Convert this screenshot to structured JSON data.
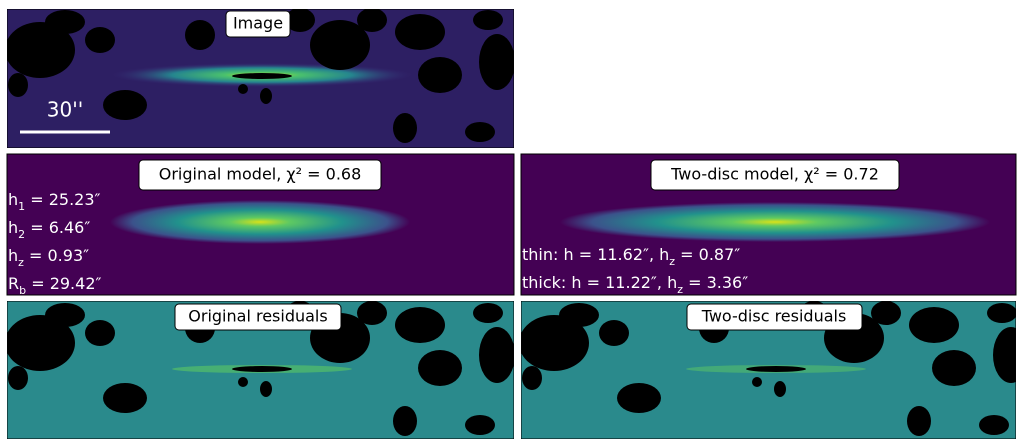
{
  "panels": {
    "image": {
      "title": "Image",
      "scale_label": "30''"
    },
    "original_model": {
      "title": "Original model, χ² = 0.68",
      "parameters": [
        [
          "h",
          {
            "sub": "1"
          },
          " = 25.23″"
        ],
        [
          "h",
          {
            "sub": "2"
          },
          " = 6.46″"
        ],
        [
          "h",
          {
            "sub": "z"
          },
          " = 0.93″"
        ],
        [
          "R",
          {
            "sub": "b"
          },
          " = 29.42″"
        ]
      ]
    },
    "two_disc_model": {
      "title": "Two-disc model, χ² = 0.72",
      "parameters": [
        [
          "thin: h = 11.62″, h",
          {
            "sub": "z"
          },
          " = 0.87″"
        ],
        [
          "thick: h = 11.22″, h",
          {
            "sub": "z"
          },
          " = 3.36″"
        ]
      ]
    },
    "original_residuals": {
      "title": "Original residuals"
    },
    "two_disc_residuals": {
      "title": "Two-disc residuals"
    }
  }
}
